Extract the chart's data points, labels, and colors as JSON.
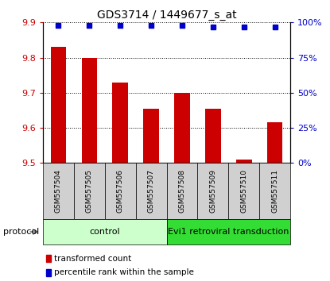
{
  "title": "GDS3714 / 1449677_s_at",
  "samples": [
    "GSM557504",
    "GSM557505",
    "GSM557506",
    "GSM557507",
    "GSM557508",
    "GSM557509",
    "GSM557510",
    "GSM557511"
  ],
  "transformed_counts": [
    9.83,
    9.8,
    9.73,
    9.655,
    9.7,
    9.655,
    9.51,
    9.615
  ],
  "percentile_ranks": [
    98,
    98,
    98,
    98,
    98,
    97,
    97,
    97
  ],
  "ylim_left": [
    9.5,
    9.9
  ],
  "ylim_right": [
    0,
    100
  ],
  "yticks_left": [
    9.5,
    9.6,
    9.7,
    9.8,
    9.9
  ],
  "yticks_right": [
    0,
    25,
    50,
    75,
    100
  ],
  "bar_color": "#cc0000",
  "dot_color": "#0000cc",
  "grid_color": "#000000",
  "control_color": "#ccffcc",
  "evi1_color": "#33dd33",
  "control_label": "control",
  "evi1_label": "Evi1 retroviral transduction",
  "protocol_label": "protocol",
  "legend_bar": "transformed count",
  "legend_dot": "percentile rank within the sample",
  "control_samples": 4,
  "evi1_samples": 4,
  "bar_bottom": 9.5,
  "sample_box_color": "#d0d0d0"
}
